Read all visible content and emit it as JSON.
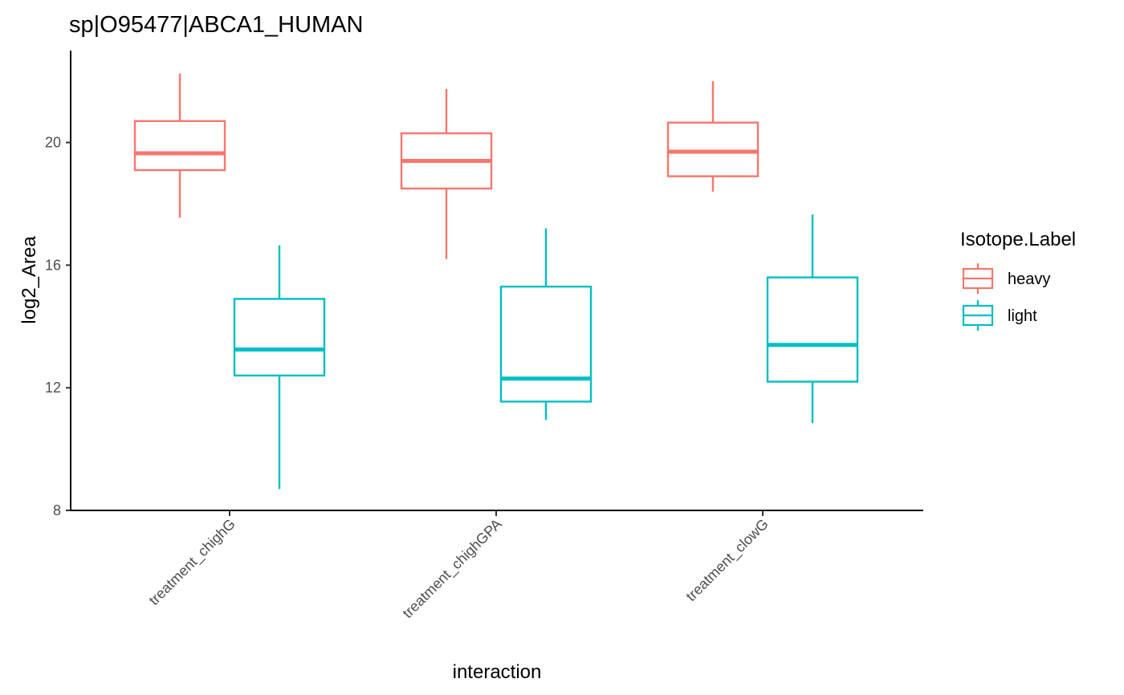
{
  "chart_data": {
    "type": "boxplot",
    "title": "sp|O95477|ABCA1_HUMAN",
    "xlabel": "interaction",
    "ylabel": "log2_Area",
    "ylim": [
      8,
      23
    ],
    "yticks": [
      8,
      12,
      16,
      20
    ],
    "categories": [
      "treatment_chighG",
      "treatment_chighGPA",
      "treatment_clowG"
    ],
    "grid": false,
    "legend": {
      "title": "Isotope.Label",
      "placement": "right"
    },
    "series": [
      {
        "name": "heavy",
        "color": "#F8766D",
        "boxes": [
          {
            "min": 17.55,
            "q1": 19.1,
            "median": 19.65,
            "q3": 20.7,
            "max": 22.25
          },
          {
            "min": 16.2,
            "q1": 18.5,
            "median": 19.4,
            "q3": 20.3,
            "max": 21.75
          },
          {
            "min": 18.4,
            "q1": 18.9,
            "median": 19.7,
            "q3": 20.65,
            "max": 22.0
          }
        ]
      },
      {
        "name": "light",
        "color": "#00BFC4",
        "boxes": [
          {
            "min": 8.7,
            "q1": 12.4,
            "median": 13.25,
            "q3": 14.9,
            "max": 16.65
          },
          {
            "min": 10.95,
            "q1": 11.55,
            "median": 12.3,
            "q3": 15.3,
            "max": 17.2
          },
          {
            "min": 10.85,
            "q1": 12.2,
            "median": 13.4,
            "q3": 15.6,
            "max": 17.65
          }
        ]
      }
    ]
  }
}
